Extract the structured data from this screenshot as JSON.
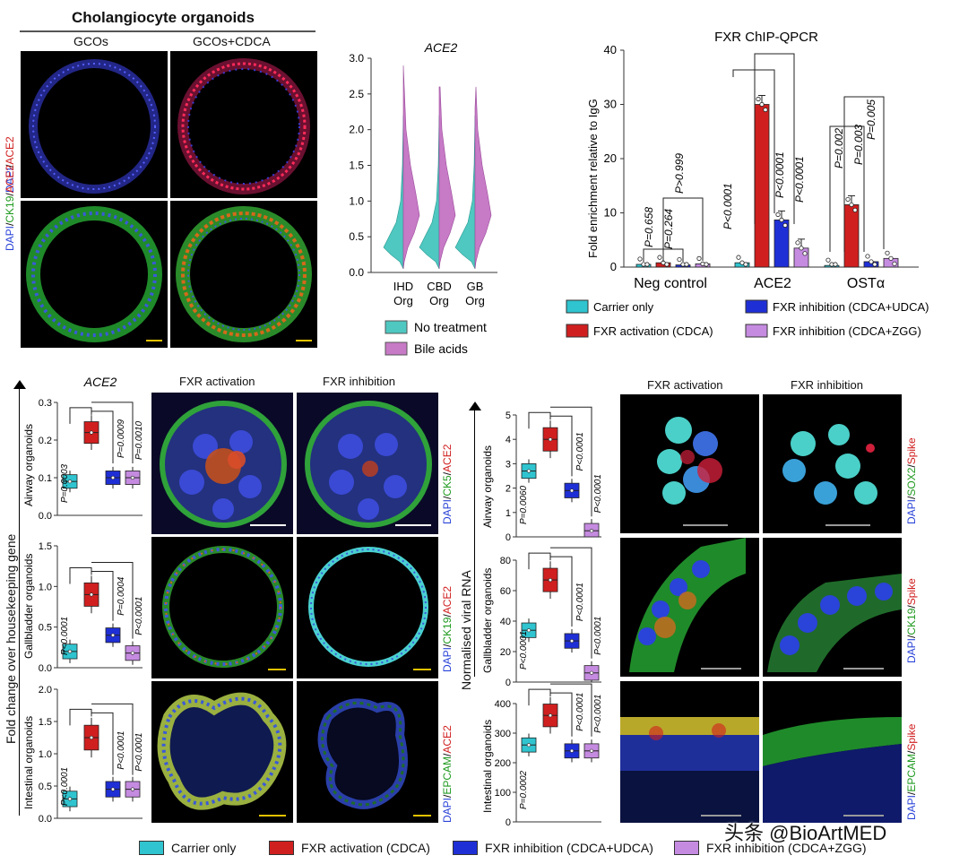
{
  "colors": {
    "carrier": "#2fc4cf",
    "activation": "#d01f1f",
    "udca": "#1f2fd6",
    "zgg": "#c58be0",
    "teal_violin": "#4ec8c0",
    "pink_violin": "#c77ac6"
  },
  "panel_a": {
    "title": "Cholangiocyte organoids",
    "col1": "GCOs",
    "col2": "GCOs+CDCA",
    "row_label_1": {
      "dapi": "DAPI",
      "sep": "/",
      "ace2": "ACE2"
    },
    "row_label_2": {
      "dapi": "DAPI",
      "sep1": "/",
      "ck19": "CK19",
      "sep2": "/",
      "ace2": "ACE2"
    }
  },
  "violin": {
    "title": "ACE2",
    "yticks": [
      "3.0",
      "2.5",
      "2.0",
      "1.5",
      "1.0",
      "0.5",
      "0.0"
    ],
    "groups": [
      {
        "l1": "IHD",
        "l2": "Org"
      },
      {
        "l1": "CBD",
        "l2": "Org"
      },
      {
        "l1": "GB",
        "l2": "Org"
      }
    ],
    "legend": [
      "No treatment",
      "Bile acids"
    ]
  },
  "chip": {
    "title": "FXR ChIP-QPCR",
    "ylabel": "Fold enrichment relative to IgG",
    "yticks": [
      "40",
      "30",
      "20",
      "10",
      "0"
    ],
    "groups": [
      "Neg control",
      "ACE2",
      "OSTα"
    ],
    "pvals": {
      "n1": "P=0.658",
      "n2": "P=0.264",
      "n3": "P>0.999",
      "a1": "P<0.0001",
      "a2": "P<0.0001",
      "a3": "P<0.0001",
      "o1": "P=0.002",
      "o2": "P=0.003",
      "o3": "P=0.005"
    },
    "legend": [
      "Carrier only",
      "FXR activation (CDCA)",
      "FXR inhibition (CDCA+UDCA)",
      "FXR inhibition (CDCA+ZGG)"
    ]
  },
  "chart_data": [
    {
      "type": "violin",
      "title": "ACE2",
      "categories": [
        "IHD Org",
        "CBD Org",
        "GB Org"
      ],
      "series": [
        {
          "name": "No treatment"
        },
        {
          "name": "Bile acids"
        }
      ],
      "ylim": [
        0,
        3.0
      ]
    },
    {
      "type": "bar",
      "title": "FXR ChIP-QPCR",
      "ylabel": "Fold enrichment relative to IgG",
      "ylim": [
        0,
        40
      ],
      "categories": [
        "Neg control",
        "ACE2",
        "OSTα"
      ],
      "series": [
        {
          "name": "Carrier only",
          "values": [
            0.5,
            0.8,
            0.3
          ]
        },
        {
          "name": "FXR activation (CDCA)",
          "values": [
            0.8,
            30,
            11.5
          ]
        },
        {
          "name": "FXR inhibition (CDCA+UDCA)",
          "values": [
            0.4,
            8.7,
            1.0
          ]
        },
        {
          "name": "FXR inhibition (CDCA+ZGG)",
          "values": [
            0.6,
            3.5,
            1.6
          ]
        }
      ]
    },
    {
      "type": "box",
      "title": "ACE2",
      "panel": "Airway organoids",
      "ylim": [
        0,
        0.3
      ],
      "values": [
        0.09,
        0.22,
        0.1,
        0.1
      ]
    },
    {
      "type": "box",
      "panel": "Gallbladder organoids",
      "ylim": [
        0,
        1.5
      ],
      "values": [
        0.2,
        0.9,
        0.4,
        0.18
      ]
    },
    {
      "type": "box",
      "panel": "Intestinal organoids",
      "ylim": [
        0,
        2.0
      ],
      "values": [
        0.3,
        1.25,
        0.45,
        0.45
      ]
    },
    {
      "type": "box",
      "panel": "Airway organoids",
      "ylabel": "Normalised viral RNA",
      "ylim": [
        0,
        5
      ],
      "values": [
        2.7,
        4.0,
        1.9,
        0.25
      ]
    },
    {
      "type": "box",
      "panel": "Gallbladder organoids",
      "ylim": [
        0,
        80
      ],
      "values": [
        34,
        67,
        27,
        6
      ]
    },
    {
      "type": "box",
      "panel": "Intestinal organoids",
      "ylim": [
        0,
        400
      ],
      "values": [
        260,
        360,
        240,
        240
      ]
    }
  ],
  "bottom_left": {
    "title": "ACE2",
    "axis": "Fold change over housekeeping gene",
    "panels": [
      {
        "name": "Airway organoids",
        "yticks": [
          "0.3",
          "0.2",
          "0.1",
          "0.0"
        ],
        "p": [
          "P=0.0003",
          "P=0.0009",
          "P=0.0010"
        ]
      },
      {
        "name": "Gallbladder organoids",
        "yticks": [
          "1.5",
          "1.0",
          "0.5",
          "0.0"
        ],
        "p": [
          "P<0.0001",
          "P=0.0004",
          "P<0.0001"
        ]
      },
      {
        "name": "Intestinal organoids",
        "yticks": [
          "2.0",
          "1.5",
          "1.0",
          "0.5",
          "0.0"
        ],
        "p": [
          "P<0.0001",
          "P<0.0001",
          "P<0.0001"
        ]
      }
    ],
    "col1": "FXR activation",
    "col2": "FXR inhibition",
    "stains": [
      {
        "dapi": "DAPI",
        "s1": "/",
        "g": "CK5",
        "s2": "/",
        "r": "ACE2"
      },
      {
        "dapi": "DAPI",
        "s1": "/",
        "g": "CK19",
        "s2": "/",
        "r": "ACE2"
      },
      {
        "dapi": "DAPI",
        "s1": "/",
        "g": "EPCAM",
        "s2": "/",
        "r": "ACE2"
      }
    ]
  },
  "bottom_right": {
    "axis": "Normalised viral RNA",
    "panels": [
      {
        "name": "Airway organoids",
        "yticks": [
          "5",
          "4",
          "3",
          "2",
          "1",
          "0"
        ],
        "p": [
          "P=0.0060",
          "P<0.0001",
          "P<0.0001"
        ]
      },
      {
        "name": "Gallbladder organoids",
        "yticks": [
          "80",
          "60",
          "40",
          "20",
          "0"
        ],
        "p": [
          "P<0.0001",
          "P<0.0001",
          "P<0.0001"
        ]
      },
      {
        "name": "Intestinal organoids",
        "yticks": [
          "400",
          "300",
          "200",
          "100",
          "0"
        ],
        "p": [
          "P=0.0002",
          "P<0.0001",
          "P<0.0001"
        ]
      }
    ],
    "col1": "FXR activation",
    "col2": "FXR inhibition",
    "stains": [
      {
        "dapi": "DAPI",
        "s1": "/",
        "g": "SOX2",
        "s2": "/",
        "r": "Spike"
      },
      {
        "dapi": "DAPI",
        "s1": "/",
        "g": "CK19",
        "s2": "/",
        "r": "Spike"
      },
      {
        "dapi": "DAPI",
        "s1": "/",
        "g": "EPCAM",
        "s2": "/",
        "r": "Spike"
      }
    ]
  },
  "bottom_legend": [
    "Carrier only",
    "FXR activation (CDCA)",
    "FXR inhibition (CDCA+UDCA)",
    "FXR inhibition (CDCA+ZGG)"
  ],
  "watermark": "头条 @BioArtMED"
}
